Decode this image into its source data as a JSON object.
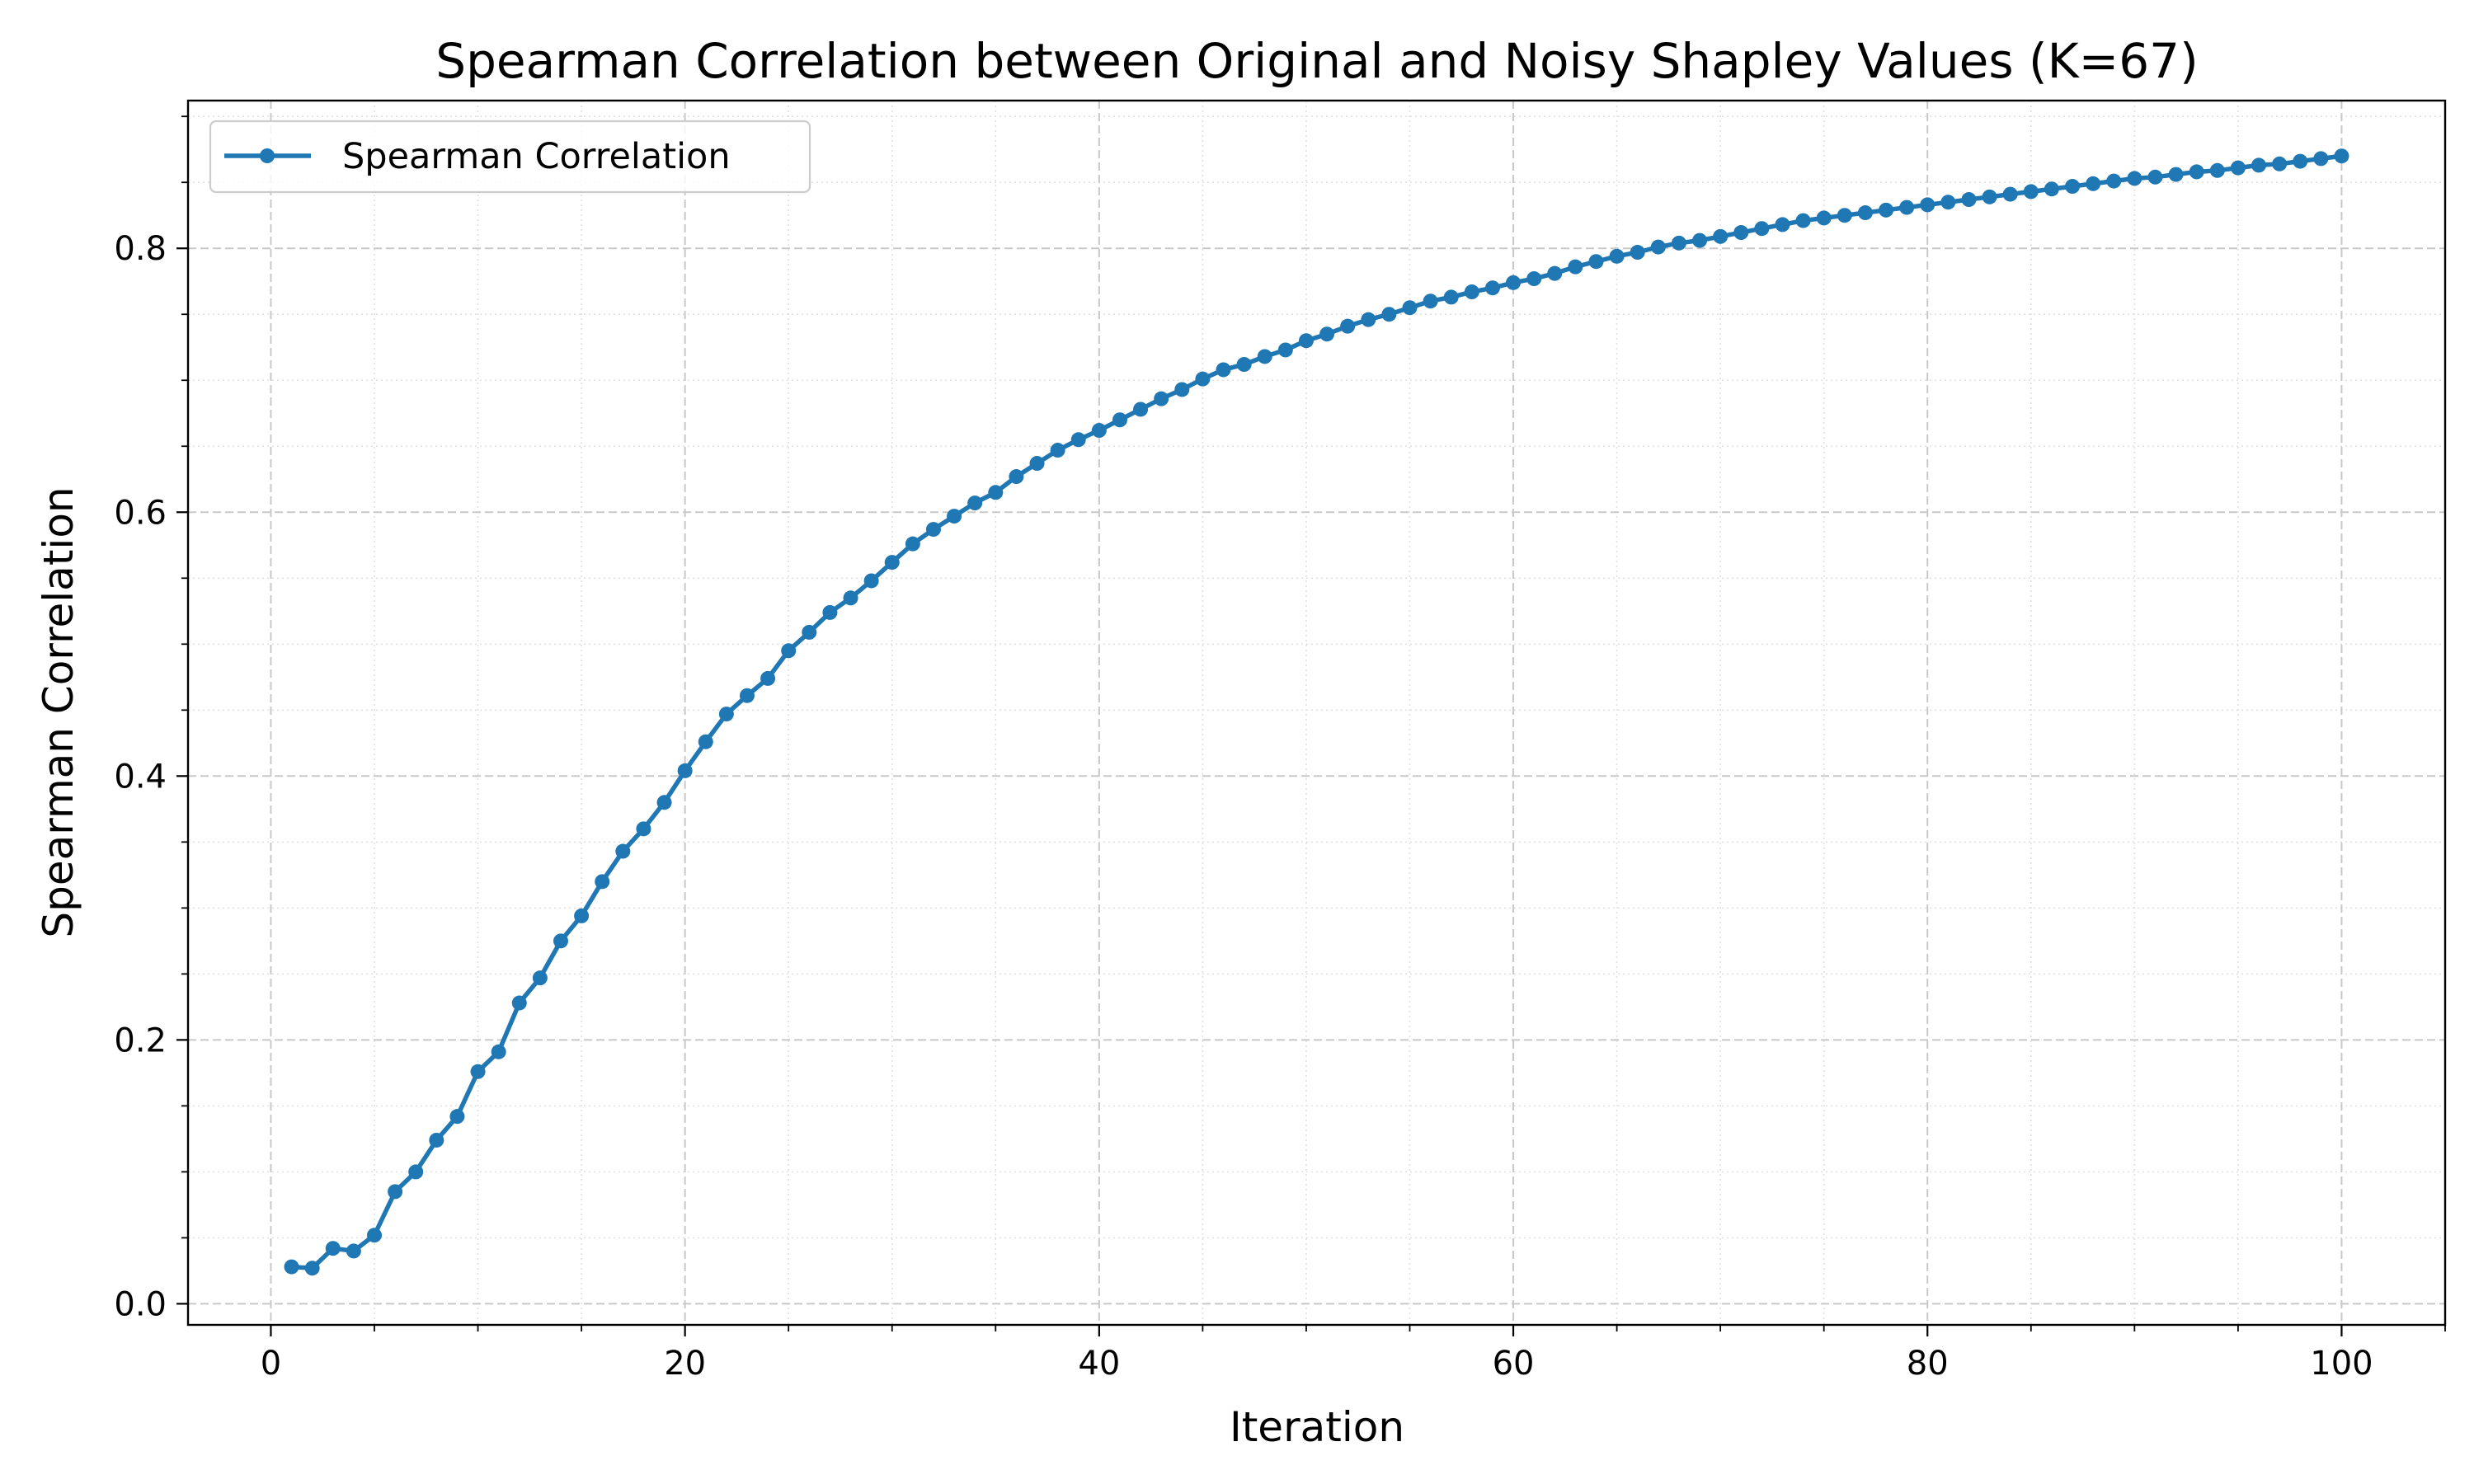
{
  "chart_data": {
    "type": "line",
    "title": "Spearman Correlation between Original and Noisy Shapley Values (K=67)",
    "xlabel": "Iteration",
    "ylabel": "Spearman Correlation",
    "xlim": [
      -4.0,
      105.0
    ],
    "ylim": [
      -0.016,
      0.912
    ],
    "x_ticks": [
      0,
      20,
      40,
      60,
      80,
      100
    ],
    "x_tick_labels": [
      "0",
      "20",
      "40",
      "60",
      "80",
      "100"
    ],
    "y_ticks": [
      0.0,
      0.2,
      0.4,
      0.6,
      0.8
    ],
    "y_tick_labels": [
      "0.0",
      "0.2",
      "0.4",
      "0.6",
      "0.8"
    ],
    "x_minor_step": 5,
    "y_minor_step": 0.05,
    "grid": "major dashed, minor dotted",
    "legend_position": "top-left",
    "series": [
      {
        "name": "Spearman Correlation",
        "color": "#1f77b4",
        "marker": "circle",
        "x": [
          1,
          2,
          3,
          4,
          5,
          6,
          7,
          8,
          9,
          10,
          11,
          12,
          13,
          14,
          15,
          16,
          17,
          18,
          19,
          20,
          21,
          22,
          23,
          24,
          25,
          26,
          27,
          28,
          29,
          30,
          31,
          32,
          33,
          34,
          35,
          36,
          37,
          38,
          39,
          40,
          41,
          42,
          43,
          44,
          45,
          46,
          47,
          48,
          49,
          50,
          51,
          52,
          53,
          54,
          55,
          56,
          57,
          58,
          59,
          60,
          61,
          62,
          63,
          64,
          65,
          66,
          67,
          68,
          69,
          70,
          71,
          72,
          73,
          74,
          75,
          76,
          77,
          78,
          79,
          80,
          81,
          82,
          83,
          84,
          85,
          86,
          87,
          88,
          89,
          90,
          91,
          92,
          93,
          94,
          95,
          96,
          97,
          98,
          99,
          100
        ],
        "values": [
          0.028,
          0.027,
          0.042,
          0.04,
          0.052,
          0.085,
          0.1,
          0.124,
          0.142,
          0.176,
          0.191,
          0.228,
          0.247,
          0.275,
          0.294,
          0.32,
          0.343,
          0.36,
          0.38,
          0.404,
          0.426,
          0.447,
          0.461,
          0.474,
          0.495,
          0.509,
          0.524,
          0.535,
          0.548,
          0.562,
          0.576,
          0.587,
          0.597,
          0.607,
          0.615,
          0.627,
          0.637,
          0.647,
          0.655,
          0.662,
          0.67,
          0.678,
          0.686,
          0.693,
          0.701,
          0.708,
          0.712,
          0.718,
          0.723,
          0.73,
          0.735,
          0.741,
          0.746,
          0.75,
          0.755,
          0.76,
          0.763,
          0.767,
          0.77,
          0.774,
          0.777,
          0.781,
          0.786,
          0.79,
          0.794,
          0.797,
          0.801,
          0.804,
          0.806,
          0.809,
          0.812,
          0.815,
          0.818,
          0.821,
          0.823,
          0.825,
          0.827,
          0.829,
          0.831,
          0.833,
          0.835,
          0.837,
          0.839,
          0.841,
          0.843,
          0.845,
          0.847,
          0.849,
          0.851,
          0.853,
          0.854,
          0.856,
          0.858,
          0.859,
          0.861,
          0.863,
          0.864,
          0.866,
          0.868,
          0.87
        ]
      }
    ]
  }
}
